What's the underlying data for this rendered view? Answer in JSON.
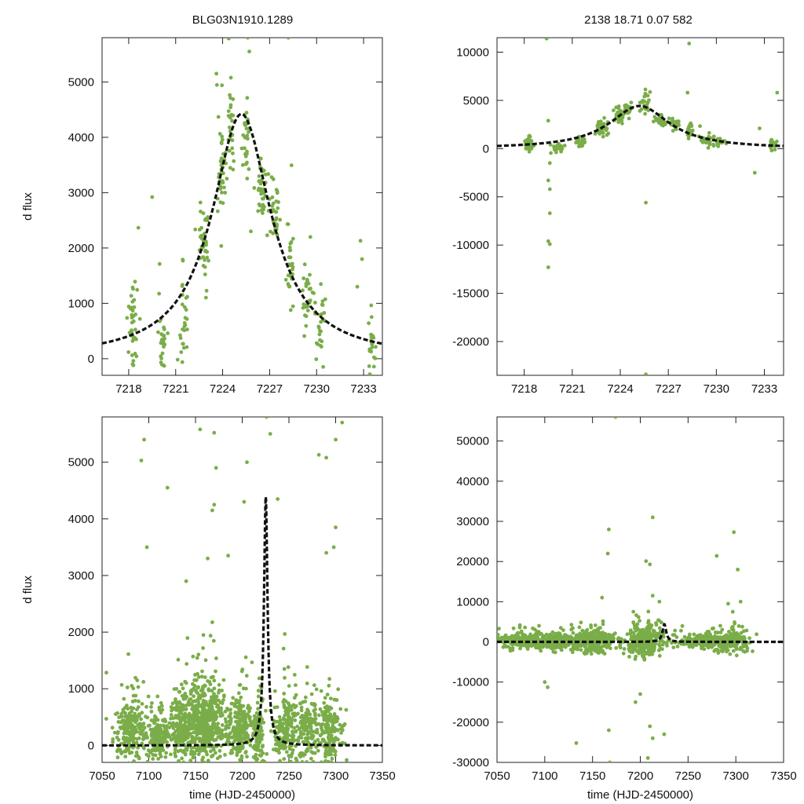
{
  "figure_title_left": "BLG03N1910.1289",
  "figure_title_right": "2138  18.71  0.07  582",
  "colors": {
    "points": "#7aad49",
    "model": "#111111",
    "axes": "#222222"
  },
  "chart_data": [
    {
      "id": "top-left",
      "type": "scatter",
      "title": "BLG03N1910.1289",
      "xlabel": "",
      "ylabel": "d flux",
      "xlim": [
        7216.3,
        7234.2
      ],
      "ylim": [
        -300,
        5800
      ],
      "xticks": [
        7218,
        7221,
        7224,
        7227,
        7230,
        7233
      ],
      "yticks": [
        0,
        1000,
        2000,
        3000,
        4000,
        5000
      ],
      "model": {
        "t0": 7225.2,
        "peak": 4420,
        "tE_effective": 2.3,
        "base": 0
      },
      "series": [
        {
          "name": "obs",
          "clusters": [
            {
              "x": 7218.3,
              "y": 600,
              "sx": 0.15,
              "sy": 450,
              "n": 40
            },
            {
              "x": 7220.1,
              "y": 250,
              "sx": 0.15,
              "sy": 250,
              "n": 28
            },
            {
              "x": 7221.5,
              "y": 650,
              "sx": 0.15,
              "sy": 350,
              "n": 28
            },
            {
              "x": 7222.8,
              "y": 2100,
              "sx": 0.2,
              "sy": 350,
              "n": 40
            },
            {
              "x": 7223.9,
              "y": 3300,
              "sx": 0.15,
              "sy": 400,
              "n": 40
            },
            {
              "x": 7224.5,
              "y": 4100,
              "sx": 0.15,
              "sy": 350,
              "n": 30
            },
            {
              "x": 7225.5,
              "y": 3900,
              "sx": 0.15,
              "sy": 300,
              "n": 30
            },
            {
              "x": 7226.5,
              "y": 3000,
              "sx": 0.2,
              "sy": 300,
              "n": 40
            },
            {
              "x": 7227.4,
              "y": 2600,
              "sx": 0.15,
              "sy": 300,
              "n": 30
            },
            {
              "x": 7228.4,
              "y": 1700,
              "sx": 0.15,
              "sy": 300,
              "n": 30
            },
            {
              "x": 7229.4,
              "y": 950,
              "sx": 0.2,
              "sy": 250,
              "n": 30
            },
            {
              "x": 7230.2,
              "y": 550,
              "sx": 0.15,
              "sy": 250,
              "n": 25
            },
            {
              "x": 7233.5,
              "y": 350,
              "sx": 0.12,
              "sy": 300,
              "n": 22
            }
          ],
          "outliers": [
            [
              7219.5,
              2920
            ],
            [
              7223.6,
              5150
            ],
            [
              7225.6,
              5800
            ],
            [
              7225.7,
              5550
            ],
            [
              7228.2,
              5800
            ],
            [
              7229.6,
              2200
            ],
            [
              7232.8,
              2130
            ],
            [
              7232.9,
              1800
            ],
            [
              7232.6,
              1300
            ],
            [
              7225.8,
              2300
            ]
          ]
        }
      ]
    },
    {
      "id": "top-right",
      "type": "scatter",
      "title": "2138  18.71  0.07  582",
      "xlabel": "",
      "ylabel": "",
      "xlim": [
        7216.3,
        7234.2
      ],
      "ylim": [
        -23500,
        11500
      ],
      "xticks": [
        7218,
        7221,
        7224,
        7227,
        7230,
        7233
      ],
      "yticks": [
        -20000,
        -15000,
        -10000,
        -5000,
        0,
        5000,
        10000
      ],
      "model": {
        "t0": 7225.2,
        "peak": 4420,
        "tE_effective": 2.3,
        "base": 0
      },
      "series": [
        {
          "name": "obs",
          "clusters": [
            {
              "x": 7218.3,
              "y": 500,
              "sx": 0.15,
              "sy": 350,
              "n": 35
            },
            {
              "x": 7220.1,
              "y": 200,
              "sx": 0.15,
              "sy": 250,
              "n": 25
            },
            {
              "x": 7221.5,
              "y": 600,
              "sx": 0.15,
              "sy": 300,
              "n": 25
            },
            {
              "x": 7222.8,
              "y": 2000,
              "sx": 0.2,
              "sy": 350,
              "n": 35
            },
            {
              "x": 7223.9,
              "y": 3300,
              "sx": 0.15,
              "sy": 400,
              "n": 35
            },
            {
              "x": 7224.5,
              "y": 4100,
              "sx": 0.15,
              "sy": 350,
              "n": 28
            },
            {
              "x": 7225.5,
              "y": 4600,
              "sx": 0.15,
              "sy": 500,
              "n": 28
            },
            {
              "x": 7226.5,
              "y": 3000,
              "sx": 0.2,
              "sy": 300,
              "n": 35
            },
            {
              "x": 7227.4,
              "y": 2600,
              "sx": 0.15,
              "sy": 300,
              "n": 28
            },
            {
              "x": 7228.4,
              "y": 1700,
              "sx": 0.15,
              "sy": 300,
              "n": 28
            },
            {
              "x": 7229.4,
              "y": 950,
              "sx": 0.2,
              "sy": 250,
              "n": 28
            },
            {
              "x": 7230.2,
              "y": 600,
              "sx": 0.15,
              "sy": 250,
              "n": 22
            },
            {
              "x": 7233.5,
              "y": 400,
              "sx": 0.12,
              "sy": 300,
              "n": 22
            }
          ],
          "outliers": [
            [
              7219.4,
              11400
            ],
            [
              7219.5,
              2900
            ],
            [
              7219.6,
              -1500
            ],
            [
              7219.5,
              -3300
            ],
            [
              7219.6,
              -4200
            ],
            [
              7219.6,
              -6700
            ],
            [
              7219.5,
              -9600
            ],
            [
              7219.6,
              -9900
            ],
            [
              7219.5,
              -12300
            ],
            [
              7228.3,
              10900
            ],
            [
              7228.2,
              5800
            ],
            [
              7225.6,
              -5600
            ],
            [
              7225.6,
              -23400
            ],
            [
              7232.4,
              -2500
            ],
            [
              7232.7,
              2100
            ],
            [
              7233.8,
              5800
            ]
          ]
        }
      ]
    },
    {
      "id": "bottom-left",
      "type": "scatter",
      "title": "",
      "xlabel": "time (HJD-2450000)",
      "ylabel": "d flux",
      "xlim": [
        7050,
        7350
      ],
      "ylim": [
        -300,
        5800
      ],
      "xticks": [
        7050,
        7100,
        7150,
        7200,
        7250,
        7300,
        7350
      ],
      "yticks": [
        0,
        1000,
        2000,
        3000,
        4000,
        5000
      ],
      "model": {
        "t0": 7225.2,
        "peak": 4420,
        "tE_effective": 2.3,
        "base": 0
      },
      "series": [
        {
          "name": "obs",
          "clusters": [
            {
              "x": 7080,
              "y": 250,
              "sx": 8,
              "sy": 300,
              "n": 230
            },
            {
              "x": 7110,
              "y": 150,
              "sx": 6,
              "sy": 200,
              "n": 180
            },
            {
              "x": 7135,
              "y": 300,
              "sx": 6,
              "sy": 300,
              "n": 200
            },
            {
              "x": 7160,
              "y": 400,
              "sx": 10,
              "sy": 350,
              "n": 500
            },
            {
              "x": 7197,
              "y": 250,
              "sx": 7,
              "sy": 300,
              "n": 220
            },
            {
              "x": 7218,
              "y": 250,
              "sx": 3,
              "sy": 300,
              "n": 120
            },
            {
              "x": 7245,
              "y": 250,
              "sx": 6,
              "sy": 280,
              "n": 170
            },
            {
              "x": 7270,
              "y": 250,
              "sx": 7,
              "sy": 280,
              "n": 170
            },
            {
              "x": 7295,
              "y": 250,
              "sx": 7,
              "sy": 300,
              "n": 160
            }
          ],
          "outliers": [
            [
              7095,
              5400
            ],
            [
              7092,
              5030
            ],
            [
              7098,
              3500
            ],
            [
              7120,
              4550
            ],
            [
              7155,
              5580
            ],
            [
              7170,
              5520
            ],
            [
              7172,
              4900
            ],
            [
              7170,
              4250
            ],
            [
              7168,
              4150
            ],
            [
              7163,
              3300
            ],
            [
              7238,
              4350
            ],
            [
              7282,
              5130
            ],
            [
              7290,
              5080
            ],
            [
              7300,
              5400
            ],
            [
              7307,
              5700
            ],
            [
              7298,
              3500
            ],
            [
              7290,
              3400
            ],
            [
              7300,
              3850
            ],
            [
              7140,
              2900
            ],
            [
              7185,
              3350
            ],
            [
              7205,
              5000
            ],
            [
              7202,
              4300
            ],
            [
              7230,
              5500
            ],
            [
              7226,
              5800
            ]
          ]
        }
      ]
    },
    {
      "id": "bottom-right",
      "type": "scatter",
      "title": "",
      "xlabel": "time (HJD-2450000)",
      "ylabel": "",
      "xlim": [
        7050,
        7350
      ],
      "ylim": [
        -30000,
        56000
      ],
      "xticks": [
        7050,
        7100,
        7150,
        7200,
        7250,
        7300,
        7350
      ],
      "yticks": [
        -30000,
        -20000,
        -10000,
        0,
        10000,
        20000,
        30000,
        40000,
        50000
      ],
      "model": {
        "t0": 7225.2,
        "peak": 4420,
        "tE_effective": 2.3,
        "base": 0
      },
      "series": [
        {
          "name": "obs",
          "clusters": [
            {
              "x": 7080,
              "y": 100,
              "sx": 12,
              "sy": 900,
              "n": 250
            },
            {
              "x": 7115,
              "y": 0,
              "sx": 8,
              "sy": 900,
              "n": 170
            },
            {
              "x": 7150,
              "y": 200,
              "sx": 13,
              "sy": 1300,
              "n": 320
            },
            {
              "x": 7205,
              "y": 0,
              "sx": 10,
              "sy": 1800,
              "n": 300
            },
            {
              "x": 7270,
              "y": 100,
              "sx": 14,
              "sy": 900,
              "n": 260
            },
            {
              "x": 7298,
              "y": 200,
              "sx": 10,
              "sy": 1400,
              "n": 160
            }
          ],
          "outliers": [
            [
              7174,
              56000
            ],
            [
              7213,
              31000
            ],
            [
              7167,
              28000
            ],
            [
              7166,
              22000
            ],
            [
              7298,
              27300
            ],
            [
              7280,
              21400
            ],
            [
              7206,
              20100
            ],
            [
              7210,
              19300
            ],
            [
              7302,
              18000
            ],
            [
              7100,
              -10000
            ],
            [
              7103,
              -11300
            ],
            [
              7133,
              -25200
            ],
            [
              7167,
              -22000
            ],
            [
              7168,
              -30000
            ],
            [
              7210,
              -21000
            ],
            [
              7213,
              -24000
            ],
            [
              7208,
              -28900
            ],
            [
              7225,
              -23000
            ],
            [
              7195,
              -15000
            ],
            [
              7200,
              -13000
            ],
            [
              7094,
              4000
            ],
            [
              7160,
              11000
            ],
            [
              7213,
              11500
            ],
            [
              7220,
              10000
            ],
            [
              7292,
              9500
            ],
            [
              7305,
              10000
            ]
          ]
        }
      ]
    }
  ]
}
